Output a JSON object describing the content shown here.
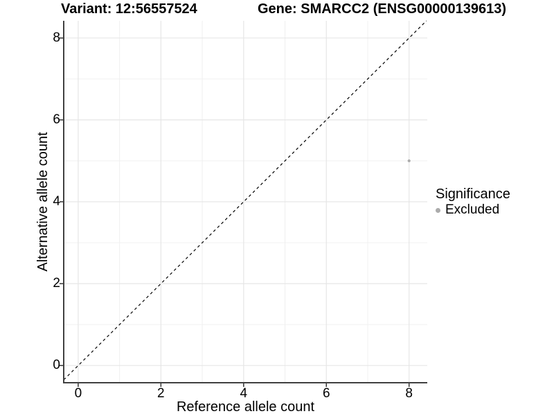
{
  "chart_data": {
    "type": "scatter",
    "title_left": "Variant: 12:56557524",
    "title_right": "Gene: SMARCC2 (ENSG00000139613)",
    "xlabel": "Reference allele count",
    "ylabel": "Alternative allele count",
    "xlim": [
      -0.35,
      8.44
    ],
    "ylim": [
      -0.42,
      8.42
    ],
    "x_ticks": [
      0,
      2,
      4,
      6,
      8
    ],
    "y_ticks": [
      0,
      2,
      4,
      6,
      8
    ],
    "x_minor_ticks": [
      1,
      3,
      5,
      7
    ],
    "y_minor_ticks": [
      1,
      3,
      5,
      7
    ],
    "grid": true,
    "reference_line": {
      "kind": "abline",
      "slope": 1,
      "intercept": 0,
      "style": "dashed",
      "color": "#000000"
    },
    "series": [
      {
        "name": "Excluded",
        "color": "#ababab",
        "points": [
          {
            "x": 8,
            "y": 5
          }
        ]
      }
    ],
    "legend": {
      "title": "Significance",
      "position": "right",
      "items": [
        {
          "label": "Excluded",
          "color": "#ababab"
        }
      ]
    },
    "style": {
      "background": "#ffffff",
      "major_grid_color": "#e6e6e6",
      "minor_grid_color": "#f0f0f0",
      "axis_line_color": "#404040",
      "tick_color": "#333333",
      "point_radius": 2.1
    }
  }
}
